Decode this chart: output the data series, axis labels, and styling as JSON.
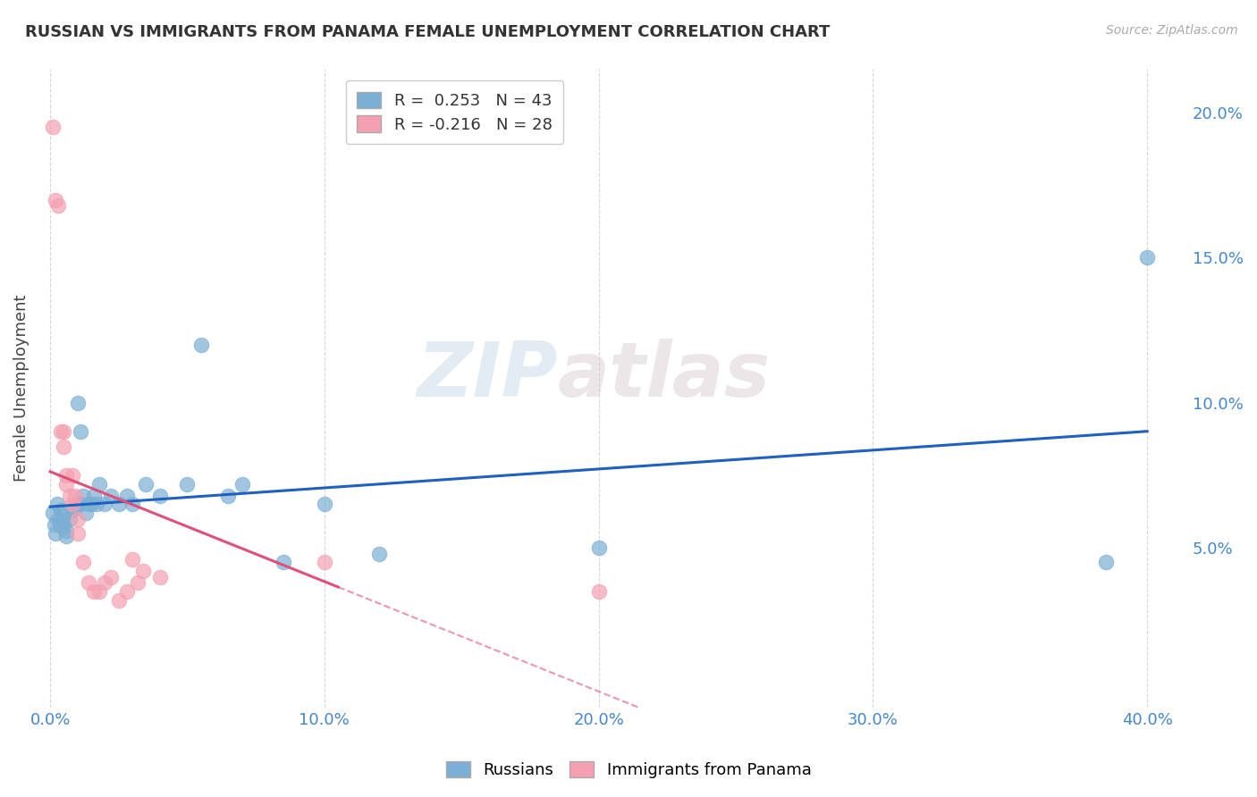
{
  "title": "RUSSIAN VS IMMIGRANTS FROM PANAMA FEMALE UNEMPLOYMENT CORRELATION CHART",
  "source": "Source: ZipAtlas.com",
  "xlabel_ticks": [
    "0.0%",
    "10.0%",
    "20.0%",
    "30.0%",
    "40.0%"
  ],
  "xlabel_tick_vals": [
    0.0,
    10.0,
    20.0,
    30.0,
    40.0
  ],
  "ylabel": "Female Unemployment",
  "ylabel_ticks": [
    "5.0%",
    "10.0%",
    "15.0%",
    "20.0%"
  ],
  "ylabel_tick_vals": [
    5.0,
    10.0,
    15.0,
    20.0
  ],
  "xlim": [
    -0.3,
    41.5
  ],
  "ylim": [
    -0.5,
    21.5
  ],
  "russians_R": 0.253,
  "russians_N": 43,
  "panama_R": -0.216,
  "panama_N": 28,
  "russians_color": "#7bafd4",
  "panama_color": "#f4a0b0",
  "trend_russian_color": "#2060c0",
  "trend_panama_color": "#e0507a",
  "watermark_zip": "ZIP",
  "watermark_atlas": "atlas",
  "background_color": "#ffffff",
  "grid_color": "#cccccc",
  "axis_label_color": "#4488cc",
  "russians_x": [
    0.1,
    0.15,
    0.2,
    0.25,
    0.3,
    0.35,
    0.4,
    0.45,
    0.5,
    0.5,
    0.6,
    0.6,
    0.7,
    0.8,
    0.9,
    1.0,
    1.0,
    1.1,
    1.1,
    1.2,
    1.3,
    1.4,
    1.5,
    1.6,
    1.7,
    1.8,
    2.0,
    2.2,
    2.5,
    2.8,
    3.0,
    3.5,
    4.0,
    5.0,
    5.5,
    6.5,
    7.0,
    8.5,
    10.0,
    12.0,
    20.0,
    38.5,
    40.0
  ],
  "russians_y": [
    6.2,
    5.8,
    5.5,
    6.5,
    6.0,
    5.8,
    6.3,
    5.7,
    6.1,
    5.9,
    5.6,
    5.4,
    6.0,
    6.3,
    6.4,
    6.5,
    10.0,
    6.5,
    9.0,
    6.8,
    6.2,
    6.5,
    6.5,
    6.8,
    6.5,
    7.2,
    6.5,
    6.8,
    6.5,
    6.8,
    6.5,
    7.2,
    6.8,
    7.2,
    12.0,
    6.8,
    7.2,
    4.5,
    6.5,
    4.8,
    5.0,
    4.5,
    15.0
  ],
  "panama_x": [
    0.1,
    0.2,
    0.3,
    0.4,
    0.5,
    0.5,
    0.6,
    0.6,
    0.7,
    0.8,
    0.8,
    0.9,
    1.0,
    1.0,
    1.2,
    1.4,
    1.6,
    1.8,
    2.0,
    2.2,
    2.5,
    2.8,
    3.0,
    3.2,
    3.4,
    4.0,
    10.0,
    20.0
  ],
  "panama_y": [
    19.5,
    17.0,
    16.8,
    9.0,
    8.5,
    9.0,
    7.5,
    7.2,
    6.8,
    6.5,
    7.5,
    6.8,
    6.0,
    5.5,
    4.5,
    3.8,
    3.5,
    3.5,
    3.8,
    4.0,
    3.2,
    3.5,
    4.6,
    3.8,
    4.2,
    4.0,
    4.5,
    3.5
  ]
}
